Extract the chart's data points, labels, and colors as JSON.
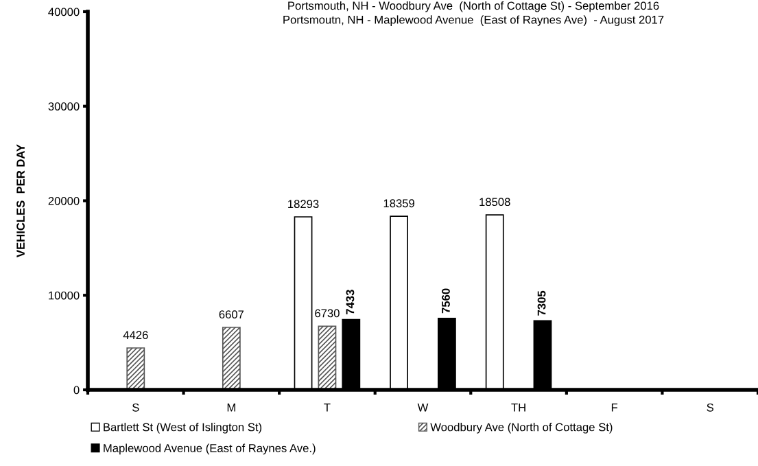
{
  "chart_data": {
    "type": "bar",
    "title": "Portsmouth, NH - Woodbury Ave  (North of Cottage St) - September 2016\nPortsmoutn, NH - Maplewood Avenue  (East of Raynes Ave)  - August 2017",
    "ylabel": "VEHICLES  PER DAY",
    "categories": [
      "S",
      "M",
      "T",
      "W",
      "TH",
      "F",
      "S"
    ],
    "series": [
      {
        "name": "Bartlett St (West of Islington St)",
        "color": "#ffffff",
        "values": [
          null,
          null,
          18293,
          18359,
          18508,
          null,
          null
        ]
      },
      {
        "name": "Woodbury Ave (North of Cottage St)",
        "color": "#555555",
        "values": [
          4426,
          6607,
          6730,
          null,
          null,
          null,
          null
        ]
      },
      {
        "name": "Maplewood Avenue (East of Raynes Ave.)",
        "color": "#000000",
        "values": [
          null,
          null,
          7433,
          7560,
          7305,
          null,
          null
        ]
      }
    ],
    "ylim": [
      0,
      40000
    ],
    "yticks": [
      0,
      10000,
      20000,
      30000,
      40000
    ],
    "data_labels": true,
    "grid": false,
    "legend": "bottom"
  }
}
